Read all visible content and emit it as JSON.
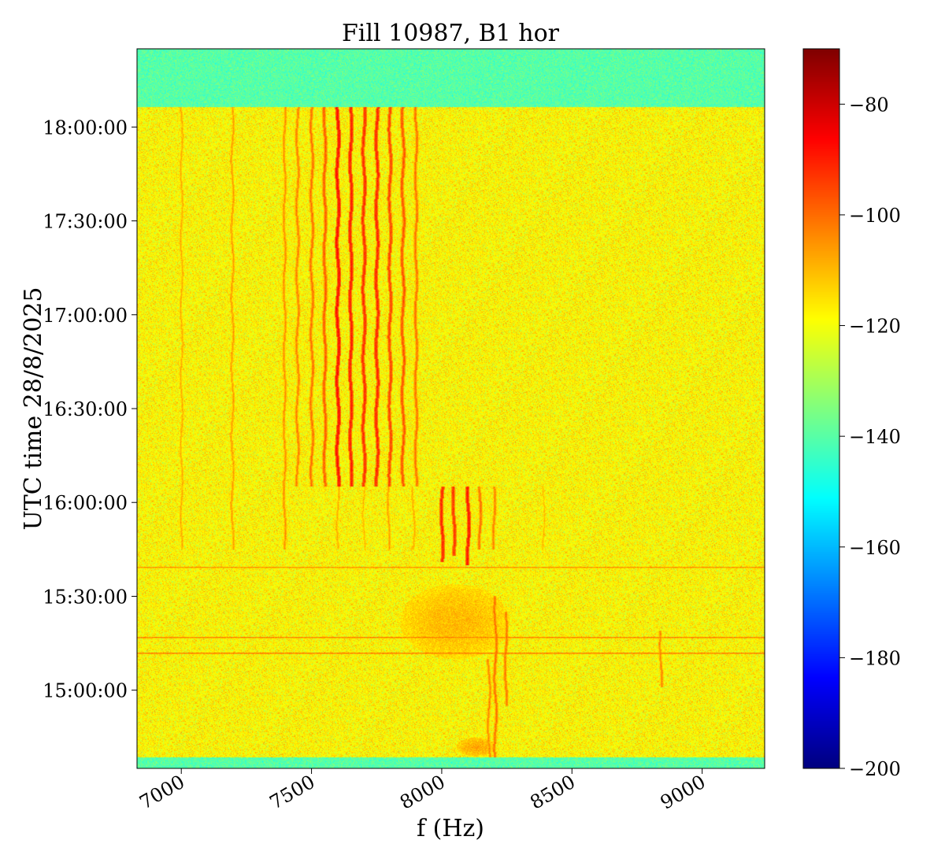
{
  "chart_data": {
    "type": "heatmap",
    "title": "Fill 10987, B1 hor",
    "xlabel": "f (Hz)",
    "ylabel": "UTC time 28/8/2025",
    "xlim": [
      6830,
      9240
    ],
    "x_ticks": [
      7000,
      7500,
      8000,
      8500,
      9000
    ],
    "x_tick_labels": [
      "7000",
      "7500",
      "8000",
      "8500",
      "9000"
    ],
    "ylim": [
      "14:35:00",
      "18:25:00"
    ],
    "y_ticks": [
      "15:00:00",
      "15:30:00",
      "16:00:00",
      "16:30:00",
      "17:00:00",
      "17:30:00",
      "18:00:00"
    ],
    "y_tick_labels": [
      "15:00:00",
      "15:30:00",
      "16:00:00",
      "16:30:00",
      "17:00:00",
      "17:30:00",
      "18:00:00"
    ],
    "colorbar": {
      "colormap": "jet",
      "range": [
        -200,
        -70
      ],
      "ticks": [
        -200,
        -180,
        -160,
        -140,
        -120,
        -100,
        -80
      ],
      "tick_labels": [
        "−200",
        "−180",
        "−160",
        "−140",
        "−120",
        "−100",
        "−80"
      ]
    },
    "background_level": -118,
    "edge_bands": [
      {
        "t_start": "18:06:30",
        "t_end": "18:25:00",
        "level": -140
      },
      {
        "t_start": "14:35:00",
        "t_end": "14:38:30",
        "level": -140
      }
    ],
    "vertical_lines": [
      {
        "f": 7000,
        "t_start": "15:45:00",
        "t_end": "18:06:30",
        "level": -108
      },
      {
        "f": 7195,
        "t_start": "15:45:00",
        "t_end": "18:06:30",
        "level": -106
      },
      {
        "f": 7395,
        "t_start": "15:45:00",
        "t_end": "18:06:30",
        "level": -104
      },
      {
        "f": 7445,
        "t_start": "16:05:00",
        "t_end": "18:06:30",
        "level": -102
      },
      {
        "f": 7500,
        "t_start": "16:05:00",
        "t_end": "18:06:30",
        "level": -100
      },
      {
        "f": 7550,
        "t_start": "16:05:00",
        "t_end": "18:06:30",
        "level": -97
      },
      {
        "f": 7600,
        "t_start": "16:05:00",
        "t_end": "18:06:30",
        "level": -87
      },
      {
        "f": 7650,
        "t_start": "16:05:00",
        "t_end": "18:06:30",
        "level": -89
      },
      {
        "f": 7700,
        "t_start": "16:05:00",
        "t_end": "18:06:30",
        "level": -91
      },
      {
        "f": 7750,
        "t_start": "16:05:00",
        "t_end": "18:06:30",
        "level": -90
      },
      {
        "f": 7800,
        "t_start": "16:05:00",
        "t_end": "18:06:30",
        "level": -94
      },
      {
        "f": 7850,
        "t_start": "16:05:00",
        "t_end": "18:06:30",
        "level": -96
      },
      {
        "f": 7900,
        "t_start": "16:05:00",
        "t_end": "18:06:30",
        "level": -100
      },
      {
        "f": 8000,
        "t_start": "15:41:00",
        "t_end": "16:05:00",
        "level": -90
      },
      {
        "f": 8045,
        "t_start": "15:43:00",
        "t_end": "16:05:00",
        "level": -92
      },
      {
        "f": 8100,
        "t_start": "15:40:00",
        "t_end": "16:05:00",
        "level": -88
      },
      {
        "f": 8145,
        "t_start": "15:45:00",
        "t_end": "16:05:00",
        "level": -100
      },
      {
        "f": 8200,
        "t_start": "15:45:00",
        "t_end": "16:05:00",
        "level": -102
      },
      {
        "f": 7600,
        "t_start": "15:45:00",
        "t_end": "16:05:00",
        "level": -108
      },
      {
        "f": 7700,
        "t_start": "15:45:00",
        "t_end": "16:05:00",
        "level": -110
      },
      {
        "f": 7795,
        "t_start": "15:45:00",
        "t_end": "16:05:00",
        "level": -106
      },
      {
        "f": 7890,
        "t_start": "15:45:00",
        "t_end": "16:05:00",
        "level": -108
      },
      {
        "f": 8390,
        "t_start": "15:45:00",
        "t_end": "16:05:00",
        "level": -110
      },
      {
        "f": 8205,
        "t_start": "14:38:30",
        "t_end": "15:30:00",
        "level": -100
      },
      {
        "f": 8245,
        "t_start": "14:55:00",
        "t_end": "15:25:00",
        "level": -101
      },
      {
        "f": 8180,
        "t_start": "14:38:30",
        "t_end": "15:10:00",
        "level": -103
      },
      {
        "f": 8840,
        "t_start": "15:01:00",
        "t_end": "15:19:00",
        "level": -103
      }
    ],
    "horizontal_lines": [
      {
        "t": "15:39:30",
        "f_start": 6830,
        "f_end": 9240,
        "level": -104
      },
      {
        "t": "15:17:00",
        "f_start": 6830,
        "f_end": 9240,
        "level": -102
      },
      {
        "t": "15:12:00",
        "f_start": 6830,
        "f_end": 9240,
        "level": -101
      }
    ],
    "hot_spots": [
      {
        "f_center": 8050,
        "t_center": "15:22:00",
        "f_span": 420,
        "t_span": "00:24:00",
        "level": -110
      },
      {
        "f_center": 8130,
        "t_center": "14:42:00",
        "f_span": 150,
        "t_span": "00:06:00",
        "level": -108
      }
    ]
  }
}
